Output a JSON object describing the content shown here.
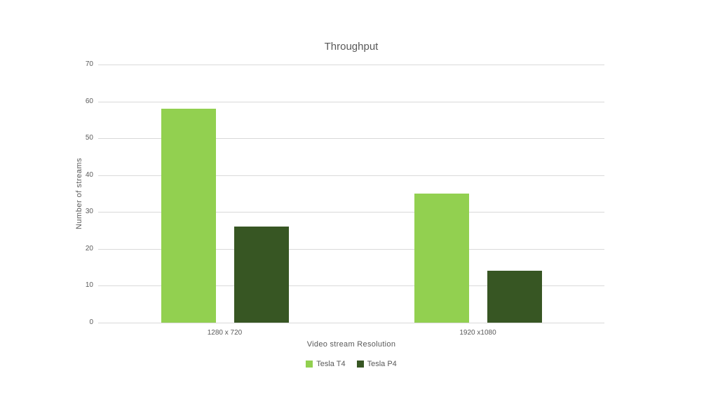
{
  "chart_data": {
    "type": "bar",
    "title": "Throughput",
    "xlabel": "Video stream Resolution",
    "ylabel": "Number of streams",
    "categories": [
      "1280 x 720",
      "1920 x1080"
    ],
    "series": [
      {
        "name": "Tesla T4",
        "color": "#92d050",
        "values": [
          58,
          35
        ]
      },
      {
        "name": "Tesla P4",
        "color": "#375623",
        "values": [
          26,
          14
        ]
      }
    ],
    "ylim": [
      0,
      70
    ],
    "ytick_interval": 10,
    "grid": true,
    "legend_position": "bottom"
  },
  "colors": {
    "background": "#ffffff",
    "gridline": "#d9d9d9",
    "text": "#595959"
  }
}
